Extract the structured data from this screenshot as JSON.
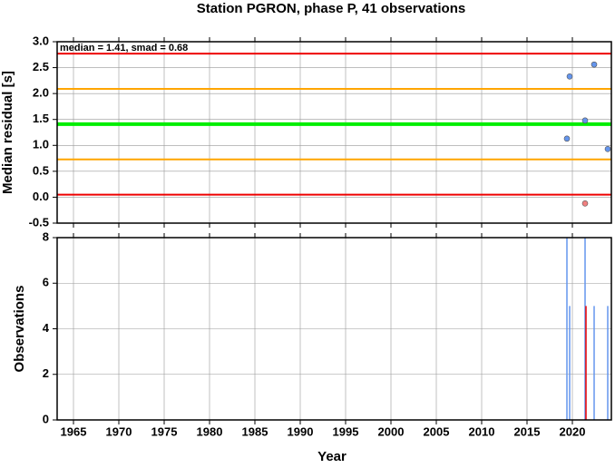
{
  "title": "Station PGRON, phase P, 41 observations",
  "x_label": "Year",
  "chart_data": [
    {
      "type": "scatter",
      "y_label": "Median residual [s]",
      "annotation": "median = 1.41, smad = 0.68",
      "xlim": [
        1963.2,
        2024.3
      ],
      "xticks": [
        1965,
        1970,
        1975,
        1980,
        1985,
        1990,
        1995,
        2000,
        2005,
        2010,
        2015,
        2020
      ],
      "ylim": [
        -0.5,
        3.0
      ],
      "yticks": [
        -0.5,
        {
          "value": 0,
          "label": "0.0"
        },
        0.5,
        {
          "value": 1,
          "label": "1.0"
        },
        1.5,
        {
          "value": 2,
          "label": "2.0"
        },
        2.5,
        {
          "value": 3,
          "label": "3.0"
        }
      ],
      "grid": true,
      "hlines": [
        {
          "value": 2.77,
          "color": "#ee0000"
        },
        {
          "value": 2.09,
          "color": "#ffa500"
        },
        {
          "value": 1.41,
          "color": "#00ee00"
        },
        {
          "value": 0.73,
          "color": "#ffa500"
        },
        {
          "value": 0.05,
          "color": "#ee0000"
        }
      ],
      "x": [
        2019.4,
        2019.7,
        2021.4,
        2021.4,
        2022.4,
        2023.9
      ],
      "values": [
        1.13,
        2.33,
        1.48,
        -0.12,
        2.56,
        0.93
      ],
      "colors": [
        "#6495ed",
        "#6495ed",
        "#6495ed",
        "#f08080",
        "#6495ed",
        "#6495ed"
      ]
    },
    {
      "type": "bar",
      "y_label": "Observations",
      "xlim": [
        1963.2,
        2024.3
      ],
      "xticks": [
        1965,
        1970,
        1975,
        1980,
        1985,
        1990,
        1995,
        2000,
        2005,
        2010,
        2015,
        2020
      ],
      "ylim": [
        0,
        8
      ],
      "yticks": [
        0,
        2,
        4,
        6,
        8
      ],
      "grid": true,
      "x": [
        2019.4,
        2019.7,
        2021.4,
        2021.5,
        2022.4,
        2023.9
      ],
      "values": [
        8,
        5,
        8,
        5,
        5,
        5
      ],
      "colors": [
        "#6495ed",
        "#6495ed",
        "#6495ed",
        "#ee0000",
        "#6495ed",
        "#6495ed"
      ]
    }
  ]
}
